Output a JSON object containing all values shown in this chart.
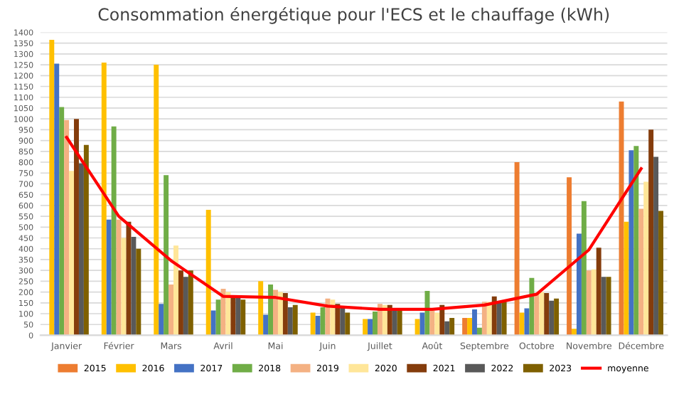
{
  "chart_data": {
    "type": "bar",
    "title": "Consommation énergétique pour l'ECS et le chauffage (kWh)",
    "categories": [
      "Janvier",
      "Février",
      "Mars",
      "Avril",
      "Mai",
      "Juin",
      "Juillet",
      "Août",
      "Septembre",
      "Octobre",
      "Novembre",
      "Décembre"
    ],
    "series": [
      {
        "name": "2015",
        "color": "#ed7d31",
        "values": [
          null,
          null,
          null,
          null,
          null,
          null,
          null,
          null,
          80,
          800,
          730,
          1080
        ]
      },
      {
        "name": "2016",
        "color": "#ffc000",
        "values": [
          1365,
          1260,
          1250,
          580,
          250,
          105,
          75,
          75,
          80,
          105,
          30,
          525
        ]
      },
      {
        "name": "2017",
        "color": "#4472c4",
        "values": [
          1255,
          535,
          145,
          115,
          95,
          90,
          75,
          105,
          120,
          125,
          470,
          855
        ]
      },
      {
        "name": "2018",
        "color": "#70ad47",
        "values": [
          1055,
          965,
          740,
          165,
          235,
          130,
          110,
          205,
          35,
          265,
          620,
          875
        ]
      },
      {
        "name": "2019",
        "color": "#f4b183",
        "values": [
          995,
          535,
          235,
          215,
          210,
          170,
          145,
          115,
          155,
          195,
          300,
          585
        ]
      },
      {
        "name": "2020",
        "color": "#ffe699",
        "values": [
          760,
          450,
          415,
          200,
          200,
          165,
          140,
          105,
          155,
          200,
          305,
          710
        ]
      },
      {
        "name": "2021",
        "color": "#843c0c",
        "values": [
          1000,
          525,
          300,
          185,
          195,
          145,
          140,
          140,
          180,
          195,
          405,
          950
        ]
      },
      {
        "name": "2022",
        "color": "#595959",
        "values": [
          795,
          455,
          270,
          185,
          130,
          135,
          115,
          65,
          155,
          160,
          270,
          825
        ]
      },
      {
        "name": "2023",
        "color": "#7f6000",
        "values": [
          880,
          400,
          300,
          165,
          140,
          105,
          120,
          80,
          155,
          170,
          270,
          575
        ]
      },
      {
        "name": "moyenne",
        "type": "line",
        "color": "#ff0000",
        "values": [
          915,
          550,
          345,
          180,
          175,
          135,
          120,
          120,
          140,
          190,
          395,
          770
        ]
      }
    ],
    "ylim": [
      0,
      1400
    ],
    "yticks": [
      0,
      50,
      100,
      150,
      200,
      250,
      300,
      350,
      400,
      450,
      500,
      550,
      600,
      650,
      700,
      750,
      800,
      850,
      900,
      950,
      1000,
      1050,
      1100,
      1150,
      1200,
      1250,
      1300,
      1350,
      1400
    ],
    "grid": "y",
    "legend": "bottom"
  }
}
